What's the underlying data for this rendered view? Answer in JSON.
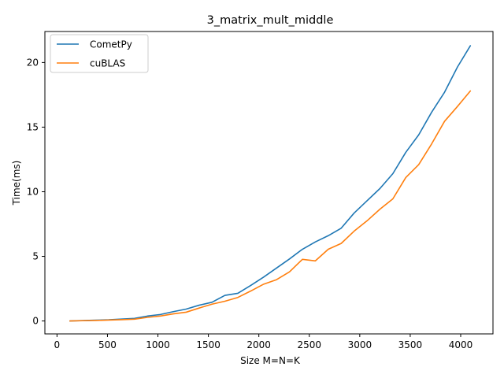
{
  "chart_data": {
    "type": "line",
    "title": "3_matrix_mult_middle",
    "xlabel": "Size M=N=K",
    "ylabel": "Time(ms)",
    "xlim": [
      -120,
      4320
    ],
    "ylim": [
      -1.0,
      22.4
    ],
    "xticks": [
      0,
      500,
      1000,
      1500,
      2000,
      2500,
      3000,
      3500,
      4000
    ],
    "yticks": [
      0,
      5,
      10,
      15,
      20
    ],
    "grid": false,
    "legend_position": "top-left",
    "x": [
      128,
      256,
      384,
      512,
      640,
      768,
      896,
      1024,
      1152,
      1280,
      1408,
      1536,
      1664,
      1792,
      1920,
      2048,
      2176,
      2304,
      2432,
      2560,
      2688,
      2816,
      2944,
      3072,
      3200,
      3328,
      3456,
      3584,
      3712,
      3840,
      3968,
      4096
    ],
    "series": [
      {
        "name": "CometPy",
        "color": "#1f77b4",
        "values": [
          0.0,
          0.03,
          0.06,
          0.09,
          0.15,
          0.2,
          0.38,
          0.5,
          0.72,
          0.92,
          1.22,
          1.45,
          1.98,
          2.14,
          2.75,
          3.4,
          4.1,
          4.8,
          5.55,
          6.12,
          6.6,
          7.18,
          8.35,
          9.3,
          10.25,
          11.4,
          13.05,
          14.4,
          16.15,
          17.7,
          19.65,
          21.3
        ]
      },
      {
        "name": "cuBLAS",
        "color": "#ff7f0e",
        "values": [
          0.0,
          0.02,
          0.04,
          0.07,
          0.1,
          0.14,
          0.28,
          0.38,
          0.55,
          0.68,
          1.0,
          1.3,
          1.53,
          1.82,
          2.32,
          2.85,
          3.2,
          3.8,
          4.77,
          4.65,
          5.55,
          6.0,
          6.95,
          7.75,
          8.65,
          9.45,
          11.1,
          12.1,
          13.7,
          15.45,
          16.6,
          17.8
        ]
      }
    ]
  }
}
